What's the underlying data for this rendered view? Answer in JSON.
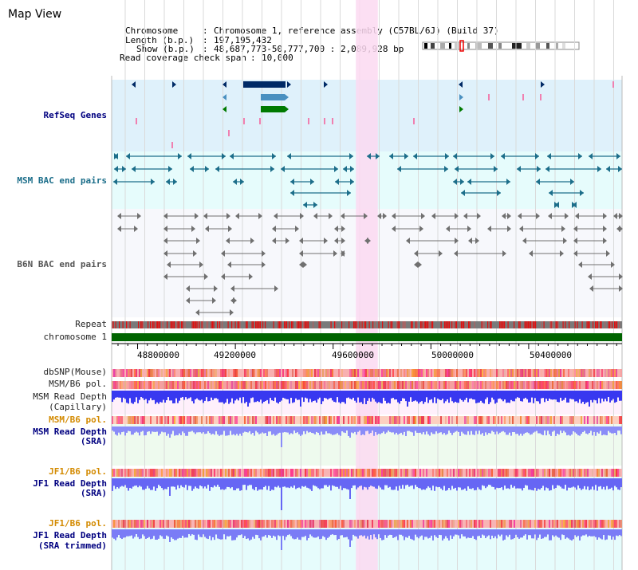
{
  "view_title": "Map View",
  "info": {
    "chromosome_label": "Chromosome",
    "chromosome_value": "Chromosome 1, reference assembly (C57BL/6J) (Build 37)",
    "length_label": "Length (b.p.)",
    "length_value": "197,195,432",
    "show_label": "Show (b.p.)",
    "show_value": "48,687,773-50,777,700 : 2,089,928 bp",
    "coverage_label": "Read coverage check span",
    "coverage_value": "10,000"
  },
  "tracks": {
    "refseq": "RefSeq Genes",
    "msm_bac": "MSM BAC end pairs",
    "b6n_bac": "B6N BAC end pairs",
    "repeat": "Repeat",
    "chromosome": "chromosome 1",
    "dbsnp": "dbSNP(Mouse)",
    "msm_b6_pol": "MSM/B6 pol.",
    "msm_depth_cap_1": "MSM Read Depth",
    "msm_depth_cap_2": "(Capillary)",
    "msm_b6_pol_2": "MSM/B6 pol.",
    "msm_depth_sra_1": "MSM Read Depth",
    "msm_depth_sra_2": "(SRA)",
    "jf1_b6_pol": "JF1/B6 pol.",
    "jf1_depth_sra_1": "JF1 Read Depth",
    "jf1_depth_sra_2": "(SRA)",
    "jf1_b6_pol_2": "JF1/B6 pol.",
    "jf1_depth_trim_1": "JF1 Read Depth",
    "jf1_depth_trim_2": "(SRA trimmed)"
  },
  "axis": {
    "ticks": [
      "48800000",
      "49200000",
      "49600000",
      "50000000",
      "50400000"
    ],
    "range": [
      48687773,
      50777700
    ],
    "highlight": [
      49687773,
      49777700
    ]
  },
  "colors": {
    "refseq_bg": "#dff1fb",
    "msm_bg": "#e6fcfc",
    "b6n_bg": "#f7f8fc",
    "highlight": "#fbd9f1",
    "chromosome": "#006400",
    "msm_feature": "#1c6e8a",
    "b6n_feature": "#707070",
    "depth_blue": "#3838f0",
    "sra_blue": "#8a8cf8"
  }
}
